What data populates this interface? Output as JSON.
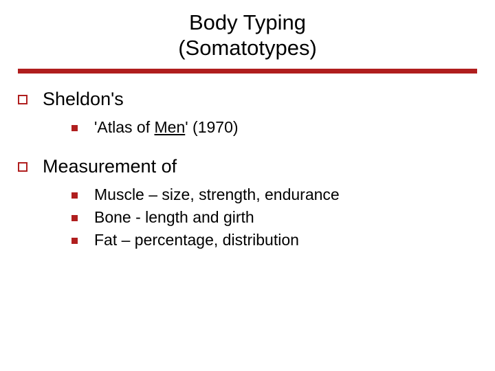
{
  "colors": {
    "accent": "#b01e1e",
    "text": "#000000",
    "background": "#ffffff"
  },
  "typography": {
    "family": "Verdana",
    "title_fontsize": 31,
    "l1_fontsize": 27,
    "l2_fontsize": 23
  },
  "title": {
    "line1": "Body Typing",
    "line2": "(Somatotypes)"
  },
  "sections": [
    {
      "heading": "Sheldon's",
      "items": [
        {
          "prefix": "'Atlas of ",
          "underlined": "Men",
          "suffix": "' (1970)"
        }
      ]
    },
    {
      "heading": "Measurement of",
      "items": [
        {
          "text": "Muscle – size, strength, endurance"
        },
        {
          "text": "Bone - length and girth"
        },
        {
          "text": "Fat – percentage, distribution"
        }
      ]
    }
  ]
}
